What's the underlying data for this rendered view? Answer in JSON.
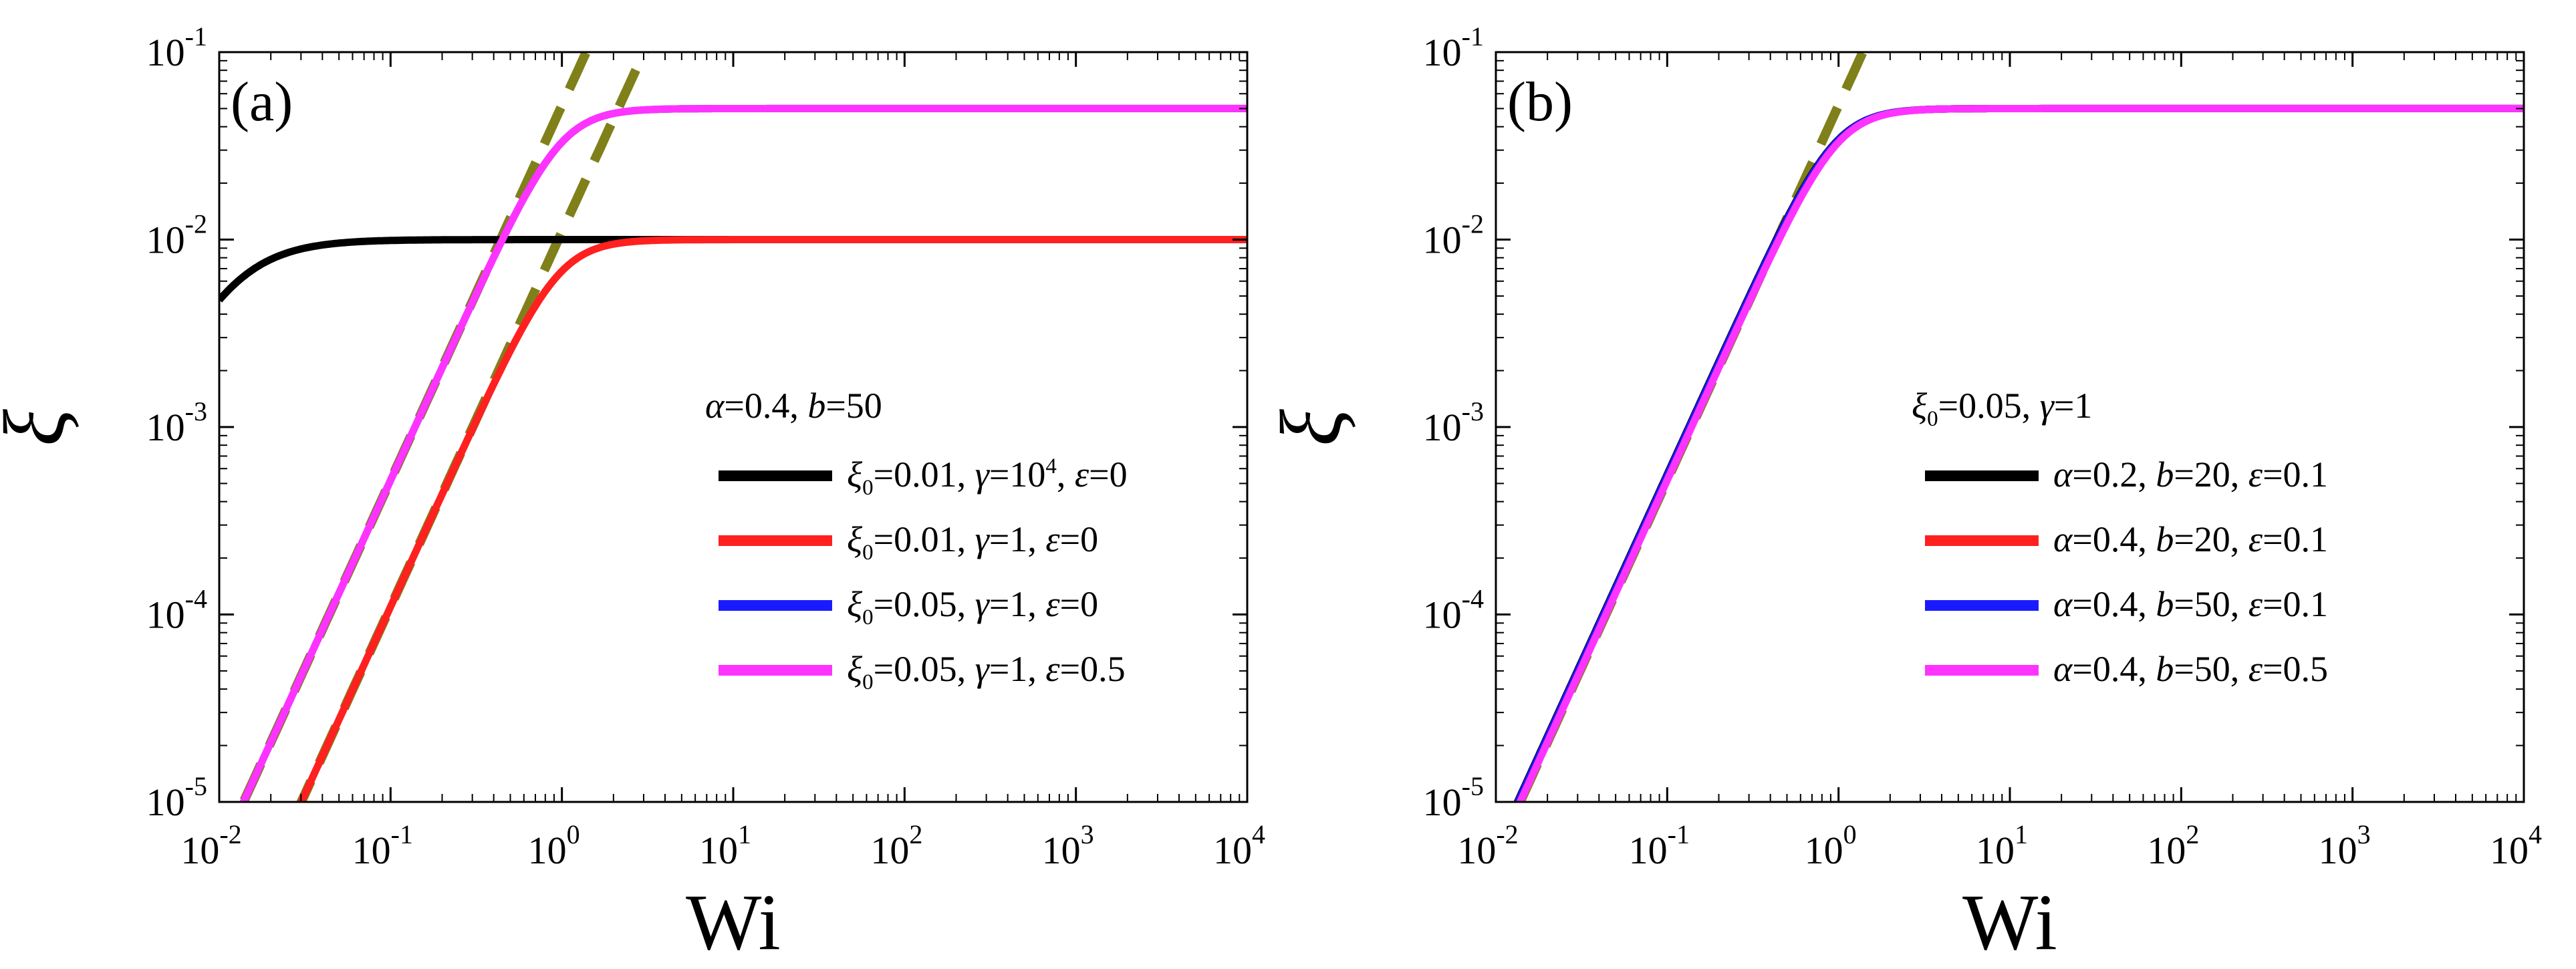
{
  "chart_data": [
    {
      "type": "line",
      "panel_label": "(a)",
      "xlabel": "Wi",
      "ylabel": "ξ",
      "xscale": "log",
      "yscale": "log",
      "xlim": [
        0.01,
        10000
      ],
      "ylim": [
        1e-05,
        0.1
      ],
      "x_ticks": [
        {
          "base": "10",
          "exp": "-2"
        },
        {
          "base": "10",
          "exp": "-1"
        },
        {
          "base": "10",
          "exp": "0"
        },
        {
          "base": "10",
          "exp": "1"
        },
        {
          "base": "10",
          "exp": "2"
        },
        {
          "base": "10",
          "exp": "3"
        },
        {
          "base": "10",
          "exp": "4"
        }
      ],
      "y_ticks": [
        {
          "base": "10",
          "exp": "-5"
        },
        {
          "base": "10",
          "exp": "-4"
        },
        {
          "base": "10",
          "exp": "-3"
        },
        {
          "base": "10",
          "exp": "-2"
        },
        {
          "base": "10",
          "exp": "-1"
        }
      ],
      "legend_title": [
        {
          "t": "α",
          "i": true
        },
        {
          "t": "=0.4, "
        },
        {
          "t": "b",
          "i": true
        },
        {
          "t": "=50"
        }
      ],
      "legend_position": "center-right",
      "series": [
        {
          "name": "ξ0=0.01, γ=10^4, ε=0",
          "color": "#000000",
          "xi0": 0.01,
          "gamma": 10000,
          "epsilon": 0,
          "slope_coef": 0.5,
          "label": [
            {
              "t": "ξ",
              "i": true
            },
            {
              "t": "0",
              "sub": true
            },
            {
              "t": "=0.01, "
            },
            {
              "t": "γ",
              "i": true
            },
            {
              "t": "=10"
            },
            {
              "t": "4",
              "sup": true
            },
            {
              "t": ", "
            },
            {
              "t": "ε",
              "i": true
            },
            {
              "t": "=0"
            }
          ]
        },
        {
          "name": "ξ0=0.01, γ=1, ε=0",
          "color": "#ff2020",
          "xi0": 0.01,
          "gamma": 1,
          "epsilon": 0,
          "slope_coef": 0.011,
          "label": [
            {
              "t": "ξ",
              "i": true
            },
            {
              "t": "0",
              "sub": true
            },
            {
              "t": "=0.01, "
            },
            {
              "t": "γ",
              "i": true
            },
            {
              "t": "=1, "
            },
            {
              "t": "ε",
              "i": true
            },
            {
              "t": "=0"
            }
          ]
        },
        {
          "name": "ξ0=0.05, γ=1, ε=0",
          "color": "#1a1aff",
          "xi0": 0.05,
          "gamma": 1,
          "epsilon": 0,
          "slope_coef": 0.052,
          "label": [
            {
              "t": "ξ",
              "i": true
            },
            {
              "t": "0",
              "sub": true
            },
            {
              "t": "=0.05, "
            },
            {
              "t": "γ",
              "i": true
            },
            {
              "t": "=1, "
            },
            {
              "t": "ε",
              "i": true
            },
            {
              "t": "=0"
            }
          ]
        },
        {
          "name": "ξ0=0.05, γ=1, ε=0.5",
          "color": "#ff33ff",
          "xi0": 0.05,
          "gamma": 1,
          "epsilon": 0.5,
          "slope_coef": 0.052,
          "label": [
            {
              "t": "ξ",
              "i": true
            },
            {
              "t": "0",
              "sub": true
            },
            {
              "t": "=0.05, "
            },
            {
              "t": "γ",
              "i": true
            },
            {
              "t": "=1, "
            },
            {
              "t": "ε",
              "i": true
            },
            {
              "t": "=0.5"
            }
          ]
        }
      ],
      "dashed_lines": [
        {
          "name": "small-Wi asymptote (ξ0=0.05)",
          "color": "#80801a",
          "coef": 0.052,
          "exponent": 2
        },
        {
          "name": "small-Wi asymptote (ξ0=0.01)",
          "color": "#80801a",
          "coef": 0.011,
          "exponent": 2
        }
      ]
    },
    {
      "type": "line",
      "panel_label": "(b)",
      "xlabel": "Wi",
      "ylabel": "ξ",
      "xscale": "log",
      "yscale": "log",
      "xlim": [
        0.01,
        10000
      ],
      "ylim": [
        1e-05,
        0.1
      ],
      "x_ticks": [
        {
          "base": "10",
          "exp": "-2"
        },
        {
          "base": "10",
          "exp": "-1"
        },
        {
          "base": "10",
          "exp": "0"
        },
        {
          "base": "10",
          "exp": "1"
        },
        {
          "base": "10",
          "exp": "2"
        },
        {
          "base": "10",
          "exp": "3"
        },
        {
          "base": "10",
          "exp": "4"
        }
      ],
      "y_ticks": [
        {
          "base": "10",
          "exp": "-5"
        },
        {
          "base": "10",
          "exp": "-4"
        },
        {
          "base": "10",
          "exp": "-3"
        },
        {
          "base": "10",
          "exp": "-2"
        },
        {
          "base": "10",
          "exp": "-1"
        }
      ],
      "legend_title": [
        {
          "t": "ξ",
          "i": true
        },
        {
          "t": "0",
          "sub": true
        },
        {
          "t": "=0.05, "
        },
        {
          "t": "γ",
          "i": true
        },
        {
          "t": "=1"
        }
      ],
      "legend_position": "center-right",
      "series": [
        {
          "name": "α=0.2, b=20, ε=0.1",
          "color": "#000000",
          "xi0": 0.05,
          "gamma": 1,
          "epsilon": 0.1,
          "slope_coef": 0.056,
          "label": [
            {
              "t": "α",
              "i": true
            },
            {
              "t": "=0.2, "
            },
            {
              "t": "b",
              "i": true
            },
            {
              "t": "=20, "
            },
            {
              "t": "ε",
              "i": true
            },
            {
              "t": "=0.1"
            }
          ]
        },
        {
          "name": "α=0.4, b=20, ε=0.1",
          "color": "#ff2020",
          "xi0": 0.05,
          "gamma": 1,
          "epsilon": 0.1,
          "slope_coef": 0.054,
          "label": [
            {
              "t": "α",
              "i": true
            },
            {
              "t": "=0.4, "
            },
            {
              "t": "b",
              "i": true
            },
            {
              "t": "=20, "
            },
            {
              "t": "ε",
              "i": true
            },
            {
              "t": "=0.1"
            }
          ]
        },
        {
          "name": "α=0.4, b=50, ε=0.1",
          "color": "#1a1aff",
          "xi0": 0.05,
          "gamma": 1,
          "epsilon": 0.1,
          "slope_coef": 0.055,
          "label": [
            {
              "t": "α",
              "i": true
            },
            {
              "t": "=0.4, "
            },
            {
              "t": "b",
              "i": true
            },
            {
              "t": "=50, "
            },
            {
              "t": "ε",
              "i": true
            },
            {
              "t": "=0.1"
            }
          ]
        },
        {
          "name": "α=0.4, b=50, ε=0.5",
          "color": "#ff33ff",
          "xi0": 0.05,
          "gamma": 1,
          "epsilon": 0.5,
          "slope_coef": 0.052,
          "label": [
            {
              "t": "α",
              "i": true
            },
            {
              "t": "=0.4, "
            },
            {
              "t": "b",
              "i": true
            },
            {
              "t": "=50, "
            },
            {
              "t": "ε",
              "i": true
            },
            {
              "t": "=0.5"
            }
          ]
        }
      ],
      "dashed_lines": [
        {
          "name": "small-Wi asymptote (ξ0=0.05)",
          "color": "#80801a",
          "coef": 0.052,
          "exponent": 2
        }
      ]
    }
  ]
}
